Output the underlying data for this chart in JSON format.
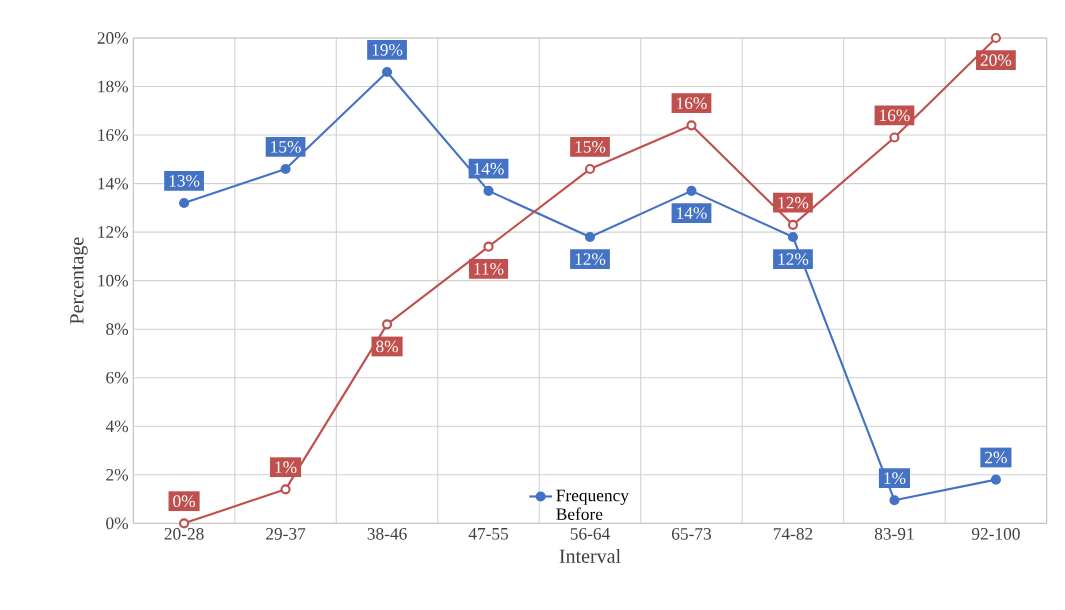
{
  "chart_data": {
    "type": "line",
    "xlabel": "Interval",
    "ylabel": "Percentage",
    "categories": [
      "20-28",
      "29-37",
      "38-46",
      "47-55",
      "56-64",
      "65-73",
      "74-82",
      "83-91",
      "92-100"
    ],
    "series": [
      {
        "name": "Frequency Before",
        "color": "#4472c4",
        "values": [
          13.2,
          14.6,
          18.6,
          13.7,
          11.8,
          13.7,
          11.8,
          0.95,
          1.8
        ],
        "value_labels": [
          "13%",
          "15%",
          "19%",
          "14%",
          "12%",
          "14%",
          "12%",
          "1%",
          "2%"
        ]
      },
      {
        "color": "#c0504d",
        "values": [
          0,
          1.4,
          8.2,
          11.4,
          14.6,
          16.4,
          12.3,
          15.9,
          20
        ],
        "value_labels": [
          "0%",
          "1%",
          "8%",
          "11%",
          "15%",
          "16%",
          "12%",
          "16%",
          "20%"
        ]
      }
    ],
    "ylim": [
      0,
      20
    ],
    "yticks": [
      {
        "value": 0,
        "label": "0%"
      },
      {
        "value": 2,
        "label": "2%"
      },
      {
        "value": 4,
        "label": "4%"
      },
      {
        "value": 6,
        "label": "6%"
      },
      {
        "value": 8,
        "label": "8%"
      },
      {
        "value": 10,
        "label": "10%"
      },
      {
        "value": 12,
        "label": "12%"
      },
      {
        "value": 14,
        "label": "14%"
      },
      {
        "value": 16,
        "label": "16%"
      },
      {
        "value": 18,
        "label": "18%"
      },
      {
        "value": 20,
        "label": "20%"
      }
    ],
    "grid": true,
    "legend": "bottom",
    "marker": "circle",
    "line_style": "solid"
  }
}
